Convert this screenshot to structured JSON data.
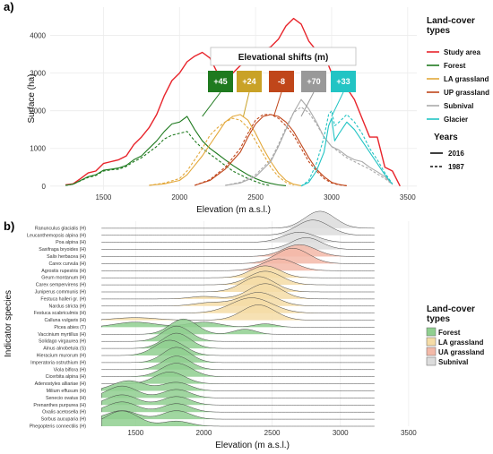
{
  "panel_a_label": "a)",
  "panel_b_label": "b)",
  "chart_data": [
    {
      "type": "line",
      "panel": "a",
      "xlabel": "Elevation (m a.s.l.)",
      "ylabel": "Surface (ha)",
      "xlim": [
        1150,
        3560
      ],
      "ylim": [
        -100,
        4750
      ],
      "xticks": [
        1500,
        2000,
        2500,
        3000,
        3500
      ],
      "yticks": [
        0,
        1000,
        2000,
        3000,
        4000
      ],
      "grid": true,
      "legend_title": "Land-cover types",
      "legend_position": "right",
      "years_title": "Years",
      "years": [
        {
          "label": "2016",
          "dash": "solid"
        },
        {
          "label": "1987",
          "dash": "dashed"
        }
      ],
      "shift_box_title": "Elevational shifts (m)",
      "shifts": [
        {
          "series": "Forest",
          "value": "+45",
          "color": "#1f7a1f"
        },
        {
          "series": "LA grassland",
          "value": "+24",
          "color": "#c9a227"
        },
        {
          "series": "UP grassland",
          "value": "-8",
          "color": "#c0461a"
        },
        {
          "series": "Subnival",
          "value": "+70",
          "color": "#999999"
        },
        {
          "series": "Glacier",
          "value": "+33",
          "color": "#22c4c4"
        }
      ],
      "series": [
        {
          "name": "Study area",
          "color": "#e8242b",
          "year": "2016",
          "x": [
            1250,
            1300,
            1350,
            1400,
            1450,
            1500,
            1550,
            1600,
            1650,
            1700,
            1750,
            1800,
            1850,
            1900,
            1950,
            2000,
            2050,
            2100,
            2150,
            2200,
            2250,
            2300,
            2350,
            2400,
            2450,
            2500,
            2550,
            2600,
            2650,
            2700,
            2750,
            2800,
            2850,
            2900,
            2950,
            3000,
            3050,
            3100,
            3150,
            3200,
            3250,
            3300,
            3350,
            3400,
            3450
          ],
          "y": [
            30,
            60,
            200,
            350,
            400,
            600,
            650,
            700,
            800,
            1100,
            1300,
            1550,
            1900,
            2400,
            2800,
            3000,
            3300,
            3450,
            3550,
            3400,
            3000,
            2900,
            3000,
            3200,
            3300,
            3400,
            3600,
            3700,
            3900,
            4250,
            4450,
            4300,
            3850,
            3600,
            3500,
            3000,
            2950,
            2600,
            2300,
            1800,
            1300,
            1300,
            500,
            400,
            0
          ]
        },
        {
          "name": "Forest",
          "color": "#1f7a1f",
          "year": "2016",
          "x": [
            1250,
            1300,
            1350,
            1400,
            1450,
            1500,
            1550,
            1600,
            1650,
            1700,
            1750,
            1800,
            1850,
            1900,
            1950,
            2000,
            2050,
            2100,
            2150,
            2200,
            2250,
            2300,
            2350,
            2400,
            2450,
            2500,
            2550,
            2600,
            2650,
            2700
          ],
          "y": [
            20,
            50,
            150,
            250,
            300,
            420,
            450,
            480,
            550,
            700,
            800,
            1000,
            1200,
            1450,
            1650,
            1700,
            1850,
            1500,
            1200,
            1000,
            850,
            700,
            550,
            420,
            300,
            200,
            120,
            70,
            30,
            10
          ]
        },
        {
          "name": "Forest",
          "color": "#1f7a1f",
          "year": "1987",
          "x": [
            1250,
            1300,
            1350,
            1400,
            1450,
            1500,
            1550,
            1600,
            1650,
            1700,
            1750,
            1800,
            1850,
            1900,
            1950,
            2000,
            2050,
            2100,
            2150,
            2200,
            2250,
            2300,
            2350,
            2400,
            2450,
            2500,
            2550,
            2600
          ],
          "y": [
            20,
            50,
            140,
            230,
            280,
            400,
            430,
            450,
            520,
            650,
            750,
            900,
            1050,
            1250,
            1350,
            1400,
            1450,
            1200,
            1000,
            850,
            700,
            550,
            400,
            300,
            200,
            120,
            50,
            10
          ]
        },
        {
          "name": "LA grassland",
          "color": "#e3a83a",
          "year": "2016",
          "x": [
            1800,
            1900,
            2000,
            2050,
            2100,
            2150,
            2200,
            2250,
            2300,
            2350,
            2400,
            2450,
            2500,
            2550,
            2600,
            2650,
            2700,
            2750,
            2800
          ],
          "y": [
            20,
            60,
            150,
            300,
            550,
            800,
            1100,
            1400,
            1700,
            1850,
            1900,
            1750,
            1400,
            1000,
            650,
            350,
            150,
            50,
            10
          ]
        },
        {
          "name": "LA grassland",
          "color": "#e3a83a",
          "year": "1987",
          "x": [
            1800,
            1900,
            2000,
            2050,
            2100,
            2150,
            2200,
            2250,
            2300,
            2350,
            2400,
            2450,
            2500,
            2550,
            2600,
            2650,
            2700,
            2750
          ],
          "y": [
            20,
            80,
            200,
            400,
            700,
            1000,
            1350,
            1550,
            1700,
            1800,
            1750,
            1550,
            1200,
            850,
            500,
            250,
            100,
            20
          ]
        },
        {
          "name": "UP grassland",
          "color": "#c0461a",
          "year": "2016",
          "x": [
            2100,
            2200,
            2300,
            2400,
            2450,
            2500,
            2550,
            2600,
            2650,
            2700,
            2750,
            2800,
            2850,
            2900,
            2950,
            3000,
            3050,
            3100
          ],
          "y": [
            20,
            150,
            450,
            900,
            1300,
            1650,
            1850,
            1900,
            1850,
            1700,
            1450,
            1100,
            750,
            450,
            250,
            100,
            40,
            10
          ]
        },
        {
          "name": "UP grassland",
          "color": "#c0461a",
          "year": "1987",
          "x": [
            2100,
            2200,
            2300,
            2400,
            2450,
            2500,
            2550,
            2600,
            2650,
            2700,
            2750,
            2800,
            2850,
            2900,
            2950,
            3000,
            3050,
            3100
          ],
          "y": [
            20,
            170,
            500,
            1000,
            1400,
            1750,
            1900,
            1900,
            1800,
            1600,
            1350,
            1000,
            650,
            400,
            200,
            80,
            30,
            10
          ]
        },
        {
          "name": "Subnival",
          "color": "#aaaaaa",
          "year": "2016",
          "x": [
            2300,
            2400,
            2500,
            2600,
            2650,
            2700,
            2750,
            2800,
            2850,
            2900,
            2950,
            3000,
            3050,
            3100,
            3150,
            3200,
            3250,
            3300,
            3350,
            3400
          ],
          "y": [
            20,
            80,
            250,
            650,
            1050,
            1500,
            1950,
            2300,
            2050,
            1700,
            1300,
            1050,
            950,
            800,
            700,
            650,
            500,
            380,
            250,
            50
          ]
        },
        {
          "name": "Subnival",
          "color": "#aaaaaa",
          "year": "1987",
          "x": [
            2300,
            2400,
            2500,
            2600,
            2650,
            2700,
            2750,
            2800,
            2850,
            2900,
            2950,
            3000,
            3050,
            3100,
            3150,
            3200,
            3250,
            3300,
            3350,
            3400
          ],
          "y": [
            20,
            100,
            300,
            700,
            1100,
            1550,
            1950,
            2100,
            1950,
            1650,
            1300,
            1050,
            900,
            750,
            650,
            550,
            450,
            320,
            200,
            40
          ]
        },
        {
          "name": "Glacier",
          "color": "#22c4c4",
          "year": "2016",
          "x": [
            2800,
            2850,
            2900,
            2950,
            2980,
            3000,
            3020,
            3050,
            3100,
            3150,
            3200,
            3250,
            3300,
            3350,
            3400
          ],
          "y": [
            0,
            100,
            400,
            900,
            1600,
            1800,
            1200,
            1400,
            1700,
            1500,
            1200,
            900,
            600,
            300,
            50
          ]
        },
        {
          "name": "Glacier",
          "color": "#22c4c4",
          "year": "1987",
          "x": [
            2800,
            2850,
            2900,
            2950,
            2980,
            3000,
            3020,
            3050,
            3100,
            3150,
            3200,
            3250,
            3300,
            3350,
            3400
          ],
          "y": [
            0,
            150,
            600,
            1300,
            1900,
            2000,
            1600,
            1700,
            1900,
            1700,
            1400,
            1000,
            700,
            350,
            60
          ]
        }
      ]
    },
    {
      "type": "area",
      "panel": "b",
      "xlabel": "Elevation (m a.s.l.)",
      "ylabel": "Indicator species",
      "xlim": [
        1150,
        3560
      ],
      "xticks": [
        1500,
        2000,
        2500,
        3000,
        3500
      ],
      "grid": true,
      "legend_title": "Land-cover types",
      "legend_position": "right",
      "legend": [
        {
          "label": "Forest",
          "color": "#8fcf8f"
        },
        {
          "label": "LA grassland",
          "color": "#f5dca6"
        },
        {
          "label": "UA grassland",
          "color": "#f3b9a8"
        },
        {
          "label": "Subnival",
          "color": "#dcdcdc"
        }
      ],
      "species": [
        {
          "name": "Ranunculus glacialis (H)",
          "type": "Subnival",
          "peaks": [
            [
              2850,
              110,
              1.0
            ]
          ]
        },
        {
          "name": "Leucanthemopsis alpina (H)",
          "type": "Subnival",
          "peaks": [
            [
              2800,
              120,
              0.9
            ]
          ]
        },
        {
          "name": "Poa alpina (H)",
          "type": "Subnival",
          "peaks": [
            [
              2700,
              120,
              0.6
            ]
          ]
        },
        {
          "name": "Saxifraga bryoides (H)",
          "type": "Subnival",
          "peaks": [
            [
              2750,
              110,
              0.7
            ]
          ]
        },
        {
          "name": "Salix herbacea (H)",
          "type": "UA grassland",
          "peaks": [
            [
              2700,
              120,
              0.7
            ]
          ]
        },
        {
          "name": "Carex curvula (H)",
          "type": "UA grassland",
          "peaks": [
            [
              2650,
              120,
              0.9
            ]
          ]
        },
        {
          "name": "Agrostis rupestris (H)",
          "type": "UA grassland",
          "peaks": [
            [
              2550,
              120,
              0.7
            ]
          ]
        },
        {
          "name": "Geum montanum (H)",
          "type": "LA grassland",
          "peaks": [
            [
              2450,
              110,
              0.7
            ]
          ]
        },
        {
          "name": "Carex sempervirens (H)",
          "type": "LA grassland",
          "peaks": [
            [
              2450,
              120,
              0.8
            ]
          ]
        },
        {
          "name": "Juniperus communis (H)",
          "type": "LA grassland",
          "peaks": [
            [
              2400,
              120,
              0.9
            ]
          ]
        },
        {
          "name": "Festuca halleri gr. (H)",
          "type": "LA grassland",
          "peaks": [
            [
              2450,
              120,
              0.9
            ],
            [
              2000,
              100,
              0.15
            ]
          ]
        },
        {
          "name": "Nardus stricta (H)",
          "type": "LA grassland",
          "peaks": [
            [
              2400,
              130,
              0.8
            ],
            [
              2050,
              120,
              0.2
            ]
          ]
        },
        {
          "name": "Festuca scabriculmis (H)",
          "type": "LA grassland",
          "peaks": [
            [
              2350,
              150,
              0.9
            ]
          ]
        },
        {
          "name": "Calluna vulgaris (H)",
          "type": "LA grassland",
          "peaks": [
            [
              2400,
              120,
              0.9
            ],
            [
              1500,
              150,
              0.15
            ]
          ]
        },
        {
          "name": "Picea abies (T)",
          "type": "Forest",
          "peaks": [
            [
              1500,
              150,
              0.3
            ],
            [
              2000,
              120,
              0.3
            ],
            [
              2450,
              80,
              0.2
            ]
          ]
        },
        {
          "name": "Vaccinium myrtillus (H)",
          "type": "Forest",
          "peaks": [
            [
              1850,
              100,
              0.9
            ],
            [
              2300,
              80,
              0.3
            ]
          ]
        },
        {
          "name": "Solidago virgaurea (H)",
          "type": "Forest",
          "peaks": [
            [
              1800,
              100,
              0.9
            ]
          ]
        },
        {
          "name": "Alnus alnobetula (S)",
          "type": "Forest",
          "peaks": [
            [
              1800,
              100,
              0.9
            ]
          ]
        },
        {
          "name": "Hieracium murorum (H)",
          "type": "Forest",
          "peaks": [
            [
              1750,
              110,
              0.9
            ]
          ]
        },
        {
          "name": "Imperatoria ostruthium (H)",
          "type": "Forest",
          "peaks": [
            [
              1800,
              100,
              0.9
            ]
          ]
        },
        {
          "name": "Viola biflora (H)",
          "type": "Forest",
          "peaks": [
            [
              1800,
              100,
              0.8
            ]
          ]
        },
        {
          "name": "Cicerbita alpina (H)",
          "type": "Forest",
          "peaks": [
            [
              1800,
              110,
              0.8
            ]
          ]
        },
        {
          "name": "Adenostyles alliariae (H)",
          "type": "Forest",
          "peaks": [
            [
              1750,
              110,
              0.7
            ]
          ]
        },
        {
          "name": "Milium effusum (H)",
          "type": "Forest",
          "peaks": [
            [
              1450,
              120,
              0.6
            ],
            [
              1800,
              100,
              0.5
            ]
          ]
        },
        {
          "name": "Senecio ovatus (H)",
          "type": "Forest",
          "peaks": [
            [
              1400,
              110,
              0.7
            ],
            [
              1800,
              100,
              0.5
            ]
          ]
        },
        {
          "name": "Prenanthes purpurea (H)",
          "type": "Forest",
          "peaks": [
            [
              1400,
              110,
              0.6
            ],
            [
              1800,
              100,
              0.5
            ]
          ]
        },
        {
          "name": "Oxalis acetosella (H)",
          "type": "Forest",
          "peaks": [
            [
              1400,
              110,
              0.6
            ],
            [
              1800,
              100,
              0.5
            ]
          ]
        },
        {
          "name": "Sorbus aucuparia (H)",
          "type": "Forest",
          "peaks": [
            [
              1400,
              110,
              0.5
            ],
            [
              1800,
              100,
              0.5
            ]
          ]
        },
        {
          "name": "Phegopteris connectilis (H)",
          "type": "Forest",
          "peaks": [
            [
              1400,
              120,
              0.9
            ],
            [
              1800,
              100,
              0.3
            ]
          ]
        }
      ]
    }
  ]
}
